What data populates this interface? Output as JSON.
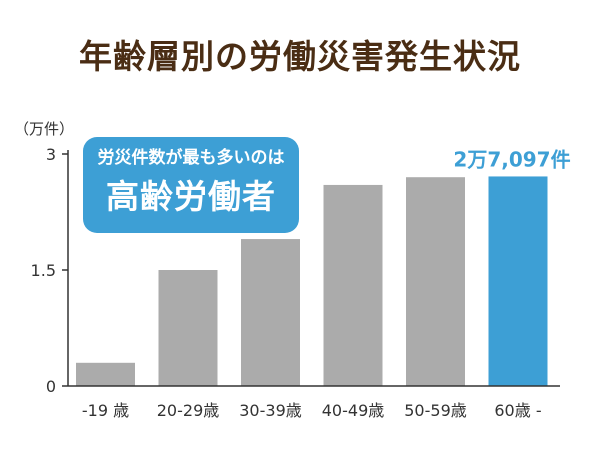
{
  "header": {
    "title": "年齢層別の労働災害発生状況"
  },
  "callout": {
    "subtitle": "労災件数が最も多いのは",
    "headline": "高齢労働者"
  },
  "colors": {
    "title": "#4a2d14",
    "bar_default": "#ababab",
    "bar_highlight": "#3d9fd5",
    "axis": "#333333",
    "text": "#333333"
  },
  "chart_data": {
    "type": "bar",
    "title": "年齢層別の労働災害発生状況",
    "unit_label": "（万件）",
    "categories": [
      "-19 歳",
      "20-29歳",
      "30-39歳",
      "40-49歳",
      "50-59歳",
      "60歳 -"
    ],
    "values": [
      0.3,
      1.5,
      1.9,
      2.6,
      2.7,
      2.7097
    ],
    "y_ticks": [
      {
        "value": 0,
        "label": "0"
      },
      {
        "value": 1.5,
        "label": "1.5"
      },
      {
        "value": 3,
        "label": "3"
      }
    ],
    "ylim": [
      0,
      3
    ],
    "highlight_index": 5,
    "data_labels": [
      {
        "index": 5,
        "text": "2万7,097件"
      }
    ],
    "grid": false,
    "legend": "none"
  }
}
